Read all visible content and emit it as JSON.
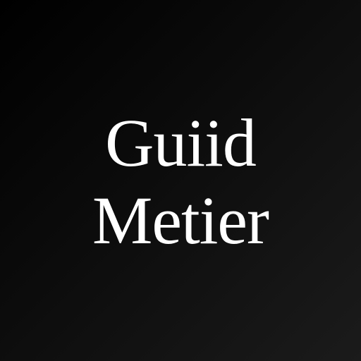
{
  "logo": {
    "line1": "Guiid",
    "line2": "Metier"
  },
  "colors": {
    "background_dark": "#000000",
    "background_light": "#1b1b1b",
    "text": "#ffffff"
  }
}
